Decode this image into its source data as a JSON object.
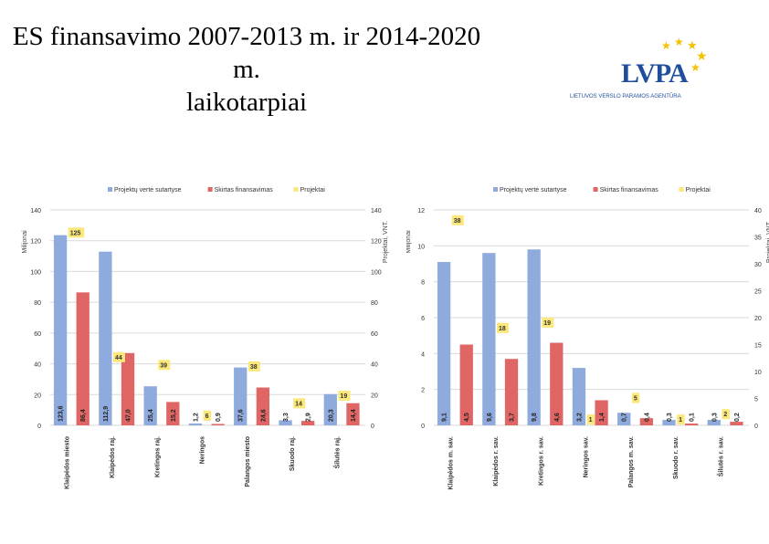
{
  "title_line1": "ES finansavimo 2007-2013 m. ir 2014-2020 m.",
  "title_line2": "laikotarpiai",
  "logo": {
    "text": "LVPA",
    "subtitle": "LIETUVOS VERSLO PARAMOS AGENTŪRA"
  },
  "colors": {
    "blue": "#8faadc",
    "red": "#e06666",
    "yellow": "#fbe77a"
  },
  "chart_data": [
    {
      "type": "bar",
      "period": "2007-2013",
      "legend": [
        "Projektų vertė sutartyse",
        "Skirtas finansavimas",
        "Projektai"
      ],
      "ylabel": "Milijonai",
      "y2label": "Projektai, VNT.",
      "ylim": [
        0,
        140
      ],
      "y2lim": [
        0,
        140
      ],
      "yticks": [
        0,
        20,
        40,
        60,
        80,
        100,
        120,
        140
      ],
      "y2ticks": [
        0,
        20,
        40,
        60,
        80,
        100,
        120,
        140
      ],
      "categories": [
        "Klaipėdos miesto",
        "Klaipėdos raj.",
        "Kretingos raj.",
        "Neringos",
        "Palangos miesto",
        "Skuodo raj.",
        "Šilutės raj."
      ],
      "series": [
        {
          "name": "Projektų vertė sutartyse",
          "values": [
            123.6,
            112.9,
            25.4,
            1.2,
            37.6,
            3.3,
            20.3
          ],
          "labels": [
            "123,6",
            "112,9",
            "25,4",
            "1,2",
            "37,6",
            "3,3",
            "20,3"
          ]
        },
        {
          "name": "Skirtas finansavimas",
          "values": [
            86.4,
            47.0,
            15.2,
            0.9,
            24.6,
            2.9,
            14.4
          ],
          "labels": [
            "86,4",
            "47,0",
            "15,2",
            "0,9",
            "24,6",
            "2,9",
            "14,4"
          ]
        },
        {
          "name": "Projektai",
          "values": [
            125,
            44,
            39,
            6,
            38,
            14,
            19
          ],
          "labels": [
            "125",
            "44",
            "39",
            "6",
            "38",
            "14",
            "19"
          ]
        }
      ]
    },
    {
      "type": "bar",
      "period": "2014-2020",
      "legend": [
        "Projektų vertė sutartyse",
        "Skirtas finansavimas",
        "Projektai"
      ],
      "ylabel": "Milijonai",
      "y2label": "Projektai, VNT.",
      "ylim": [
        0,
        12
      ],
      "y2lim": [
        0,
        40
      ],
      "yticks": [
        0,
        2,
        4,
        6,
        8,
        10,
        12
      ],
      "y2ticks": [
        0,
        5,
        10,
        15,
        20,
        25,
        30,
        35,
        40
      ],
      "categories": [
        "Klaipėdos m. sav.",
        "Klaipėdos r. sav.",
        "Kretingos r. sav.",
        "Neringos sav.",
        "Palangos m. sav.",
        "Skuodo r. sav.",
        "Šilutės r. sav."
      ],
      "series": [
        {
          "name": "Projektų vertė sutartyse",
          "values": [
            9.1,
            9.6,
            9.8,
            3.2,
            0.7,
            0.3,
            0.3
          ],
          "labels": [
            "9,1",
            "9,6",
            "9,8",
            "3,2",
            "0,7",
            "0,3",
            "0,3"
          ]
        },
        {
          "name": "Skirtas finansavimas",
          "values": [
            4.5,
            3.7,
            4.6,
            1.4,
            0.4,
            0.1,
            0.2
          ],
          "labels": [
            "4,5",
            "3,7",
            "4,6",
            "1,4",
            "0,4",
            "0,1",
            "0,2"
          ]
        },
        {
          "name": "Projektai",
          "values": [
            38,
            18,
            19,
            1,
            5,
            1,
            2
          ],
          "labels": [
            "38",
            "18",
            "19",
            "1",
            "5",
            "1",
            "2"
          ]
        }
      ]
    }
  ]
}
